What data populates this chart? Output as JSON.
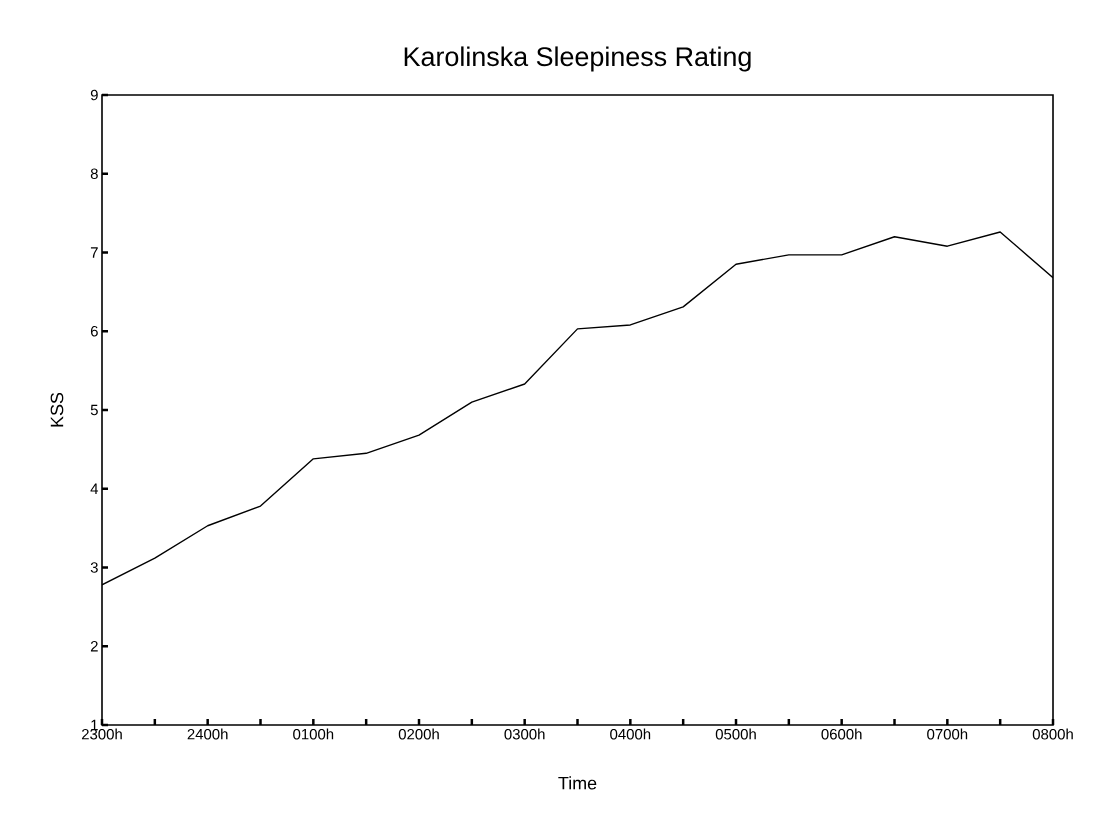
{
  "chart_data": {
    "type": "line",
    "title": "Karolinska Sleepiness Rating",
    "xlabel": "Time",
    "ylabel": "KSS",
    "categories": [
      "2300h",
      null,
      "2400h",
      null,
      "0100h",
      null,
      "0200h",
      null,
      "0300h",
      null,
      "0400h",
      null,
      "0500h",
      null,
      "0600h",
      null,
      "0700h",
      null,
      "0800h"
    ],
    "series": [
      {
        "color": "#000000",
        "values": [
          2.78,
          3.12,
          3.53,
          3.78,
          4.38,
          4.45,
          4.68,
          5.1,
          5.33,
          6.03,
          6.08,
          6.31,
          6.85,
          6.97,
          6.97,
          7.2,
          7.08,
          7.26,
          6.68
        ]
      }
    ],
    "ylim": [
      1,
      9
    ],
    "yticks": [
      1,
      2,
      3,
      4,
      5,
      6,
      7,
      8,
      9
    ]
  }
}
